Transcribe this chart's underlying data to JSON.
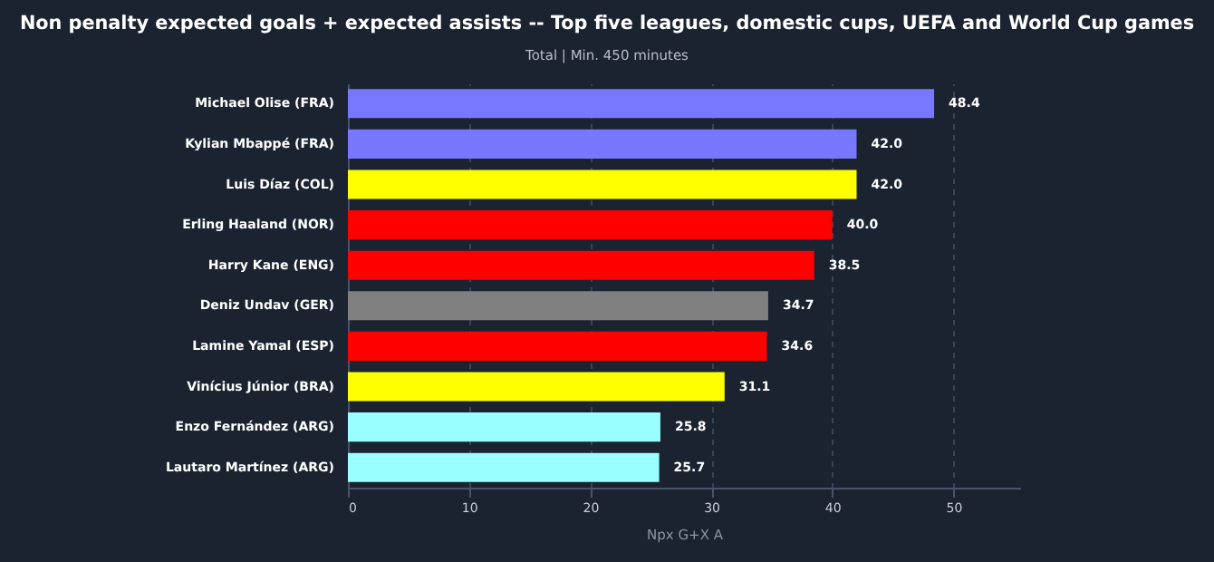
{
  "chart_data": {
    "type": "bar",
    "orientation": "horizontal",
    "title": "Non penalty expected goals + expected assists -- Top five leagues, domestic cups, UEFA and World Cup games",
    "subtitle": "Total  |  Min. 450 minutes",
    "xlabel": "Npx G+X A",
    "categories": [
      "Michael Olise (FRA)",
      "Kylian Mbappé (FRA)",
      "Luis Díaz (COL)",
      "Erling Haaland (NOR)",
      "Harry Kane (ENG)",
      "Deniz Undav (GER)",
      "Lamine Yamal (ESP)",
      "Vinícius Júnior (BRA)",
      "Enzo Fernández (ARG)",
      "Lautaro Martínez (ARG)"
    ],
    "values": [
      48.4,
      42.0,
      42.0,
      40.0,
      38.5,
      34.7,
      34.6,
      31.1,
      25.8,
      25.7
    ],
    "value_labels": [
      "48.4",
      "42.0",
      "42.0",
      "40.0",
      "38.5",
      "34.7",
      "34.6",
      "31.1",
      "25.8",
      "25.7"
    ],
    "colors": [
      "#7777ff",
      "#7777ff",
      "#ffff00",
      "#ff0000",
      "#ff0000",
      "#808080",
      "#ff0000",
      "#ffff00",
      "#99ffff",
      "#99ffff"
    ],
    "xlim": [
      0,
      55.5
    ],
    "xticks": [
      0,
      10,
      20,
      30,
      40,
      50
    ],
    "grid": "x"
  }
}
